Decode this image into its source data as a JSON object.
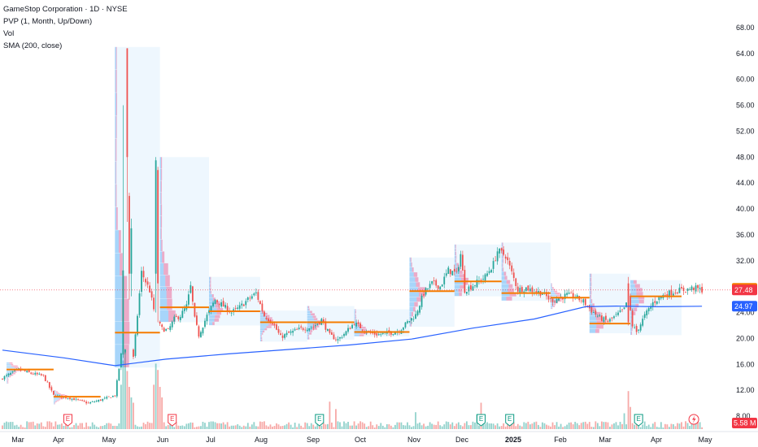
{
  "legend": {
    "title": "GameStop Corporation · 1D · NYSE",
    "indicator1": "PVP (1, Month, Up/Down)",
    "indicator2": "Vol",
    "indicator3": "SMA (200, close)"
  },
  "colors": {
    "up": "#26a69a",
    "down": "#ef5350",
    "sma": "#2962ff",
    "poc": "#f57c00",
    "profile_up": "#2196f3",
    "profile_down": "#e91e63",
    "box": "#e3f2fd"
  },
  "chart_data": {
    "type": "candlestick",
    "ylim": [
      7,
      71
    ],
    "yticks": [
      8,
      12,
      16,
      20,
      24,
      28,
      32,
      36,
      40,
      44,
      48,
      52,
      56,
      60,
      64,
      68
    ],
    "x_labels": [
      "Mar",
      "Apr",
      "May",
      "Jun",
      "Jul",
      "Aug",
      "Sep",
      "Oct",
      "Nov",
      "Dec",
      "2025",
      "Feb",
      "Mar",
      "Apr",
      "May"
    ],
    "price_badges": {
      "last": {
        "label": "27.48",
        "value": 27.48,
        "color": "#f23645"
      },
      "poc": {
        "label": "27.74",
        "value": 27.74,
        "color": "#f57c00"
      },
      "sma": {
        "label": "24.97",
        "value": 24.97,
        "color": "#2962ff"
      },
      "volume": {
        "label": "5.58 M",
        "color": "#f23645"
      }
    },
    "anchor_prices": [
      [
        0,
        13.9
      ],
      [
        8,
        15.2
      ],
      [
        14,
        14.6
      ],
      [
        20,
        14.2
      ],
      [
        25,
        11.2
      ],
      [
        33,
        10.8
      ],
      [
        42,
        10.0
      ],
      [
        48,
        10.5
      ],
      [
        52,
        10.9
      ],
      [
        55,
        11.2
      ],
      [
        58,
        17.5
      ],
      [
        62,
        19.5
      ],
      [
        64,
        17.0
      ],
      [
        68,
        30.2
      ],
      [
        72,
        27.4
      ],
      [
        75,
        23.0
      ],
      [
        78,
        21.5
      ],
      [
        81,
        21.2
      ],
      [
        84,
        23.0
      ],
      [
        87,
        23.5
      ],
      [
        90,
        25.0
      ],
      [
        92,
        28.0
      ],
      [
        94,
        23.0
      ],
      [
        96,
        20.5
      ],
      [
        100,
        23.5
      ],
      [
        104,
        26.0
      ],
      [
        108,
        25.0
      ],
      [
        112,
        24.0
      ],
      [
        116,
        24.8
      ],
      [
        120,
        26.0
      ],
      [
        124,
        27.0
      ],
      [
        128,
        23.5
      ],
      [
        132,
        22.5
      ],
      [
        136,
        20.2
      ],
      [
        140,
        20.8
      ],
      [
        146,
        21.5
      ],
      [
        152,
        21.8
      ],
      [
        156,
        22.9
      ],
      [
        160,
        20.5
      ],
      [
        164,
        19.8
      ],
      [
        168,
        21.0
      ],
      [
        172,
        22.4
      ],
      [
        176,
        21.5
      ],
      [
        180,
        20.8
      ],
      [
        184,
        20.6
      ],
      [
        190,
        20.9
      ],
      [
        194,
        21.2
      ],
      [
        198,
        22.5
      ],
      [
        202,
        23.6
      ],
      [
        206,
        27.0
      ],
      [
        210,
        28.5
      ],
      [
        214,
        28.0
      ],
      [
        218,
        30.5
      ],
      [
        222,
        30.0
      ],
      [
        224,
        33.0
      ],
      [
        226,
        27.5
      ],
      [
        230,
        28.2
      ],
      [
        236,
        29.5
      ],
      [
        240,
        31.5
      ],
      [
        242,
        33.5
      ],
      [
        246,
        32.8
      ],
      [
        248,
        31.0
      ],
      [
        252,
        27.5
      ],
      [
        256,
        27.8
      ],
      [
        260,
        27.3
      ],
      [
        264,
        27.0
      ],
      [
        268,
        25.9
      ],
      [
        272,
        26.2
      ],
      [
        276,
        26.7
      ],
      [
        280,
        26.4
      ],
      [
        284,
        25.7
      ],
      [
        288,
        24.3
      ],
      [
        292,
        23.2
      ],
      [
        296,
        22.6
      ],
      [
        300,
        23.5
      ],
      [
        304,
        24.5
      ],
      [
        306,
        26.5
      ],
      [
        308,
        22.0
      ],
      [
        310,
        21.0
      ],
      [
        314,
        23.5
      ],
      [
        318,
        25.5
      ],
      [
        322,
        26.5
      ],
      [
        326,
        27.0
      ],
      [
        330,
        27.4
      ],
      [
        334,
        27.5
      ],
      [
        338,
        27.8
      ],
      [
        342,
        27.48
      ]
    ],
    "spikes": [
      {
        "i": 59,
        "open": 17.5,
        "close": 30.5,
        "high": 56.0,
        "low": 17.0
      },
      {
        "i": 61,
        "open": 64.8,
        "close": 48.0,
        "high": 64.8,
        "low": 38.0
      },
      {
        "i": 62,
        "open": 42.0,
        "close": 30.0,
        "high": 42.5,
        "low": 26.0
      },
      {
        "i": 63,
        "open": 30.0,
        "close": 37.0,
        "high": 38.5,
        "low": 26.5
      },
      {
        "i": 75,
        "open": 30.0,
        "close": 47.5,
        "high": 48.0,
        "low": 24.0
      },
      {
        "i": 76,
        "open": 46.0,
        "close": 28.5,
        "high": 46.5,
        "low": 22.5
      },
      {
        "i": 306,
        "open": 28.5,
        "close": 22.5,
        "high": 29.5,
        "low": 22.0
      }
    ],
    "volume_peaks": [
      {
        "i": 58,
        "v": 4.2
      },
      {
        "i": 59,
        "v": 6.5
      },
      {
        "i": 60,
        "v": 7.5
      },
      {
        "i": 61,
        "v": 5.5
      },
      {
        "i": 62,
        "v": 4.0
      },
      {
        "i": 63,
        "v": 3.0
      },
      {
        "i": 64,
        "v": 2.5
      },
      {
        "i": 74,
        "v": 4.2
      },
      {
        "i": 75,
        "v": 6.2
      },
      {
        "i": 76,
        "v": 5.6
      },
      {
        "i": 77,
        "v": 4.0
      },
      {
        "i": 78,
        "v": 3.0
      },
      {
        "i": 160,
        "v": 2.6
      },
      {
        "i": 163,
        "v": 1.9
      },
      {
        "i": 202,
        "v": 1.6
      },
      {
        "i": 232,
        "v": 1.4
      },
      {
        "i": 234,
        "v": 2.5
      },
      {
        "i": 306,
        "v": 3.6
      },
      {
        "i": 307,
        "v": 2.1
      },
      {
        "i": 304,
        "v": 1.5
      }
    ],
    "sma_points": [
      [
        0,
        18.2
      ],
      [
        30,
        17.0
      ],
      [
        55,
        15.8
      ],
      [
        65,
        16.2
      ],
      [
        80,
        16.8
      ],
      [
        110,
        17.6
      ],
      [
        140,
        18.3
      ],
      [
        170,
        19.0
      ],
      [
        200,
        19.9
      ],
      [
        230,
        21.6
      ],
      [
        260,
        23.0
      ],
      [
        285,
        24.9
      ],
      [
        300,
        25.0
      ],
      [
        320,
        24.9
      ],
      [
        342,
        24.97
      ]
    ],
    "monthly_profiles": [
      {
        "start": 2,
        "end": 25,
        "low": 13.0,
        "high": 16.3,
        "poc": 15.2,
        "shaded": false
      },
      {
        "start": 25,
        "end": 48,
        "low": 9.8,
        "high": 12.0,
        "poc": 11.0,
        "shaded": false
      },
      {
        "start": 55,
        "end": 77,
        "low": 15.5,
        "high": 65.0,
        "poc": 20.9,
        "shaded": true
      },
      {
        "start": 77,
        "end": 101,
        "low": 22.5,
        "high": 48.0,
        "poc": 24.8,
        "shaded": true
      },
      {
        "start": 101,
        "end": 126,
        "low": 22.0,
        "high": 29.5,
        "poc": 24.2,
        "shaded": true
      },
      {
        "start": 126,
        "end": 149,
        "low": 19.5,
        "high": 24.3,
        "poc": 22.5,
        "shaded": true
      },
      {
        "start": 149,
        "end": 172,
        "low": 19.8,
        "high": 25.0,
        "poc": 22.5,
        "shaded": true
      },
      {
        "start": 172,
        "end": 199,
        "low": 20.3,
        "high": 24.5,
        "poc": 21.0,
        "shaded": true
      },
      {
        "start": 199,
        "end": 221,
        "low": 21.8,
        "high": 32.5,
        "poc": 27.3,
        "shaded": true
      },
      {
        "start": 221,
        "end": 244,
        "low": 26.5,
        "high": 34.5,
        "poc": 28.8,
        "shaded": true
      },
      {
        "start": 244,
        "end": 268,
        "low": 25.8,
        "high": 34.8,
        "poc": 27.0,
        "shaded": true
      },
      {
        "start": 268,
        "end": 287,
        "low": 24.5,
        "high": 28.5,
        "poc": 26.3,
        "shaded": false
      },
      {
        "start": 287,
        "end": 307,
        "low": 20.8,
        "high": 30.0,
        "poc": 22.3,
        "shaded": true
      },
      {
        "start": 307,
        "end": 332,
        "low": 20.5,
        "high": 29.0,
        "poc": 26.5,
        "shaded": true
      }
    ],
    "earnings_markers": [
      {
        "i": 32
      },
      {
        "i": 83
      }
    ],
    "dividend_markers": [
      {
        "i": 155
      },
      {
        "i": 234
      },
      {
        "i": 248
      },
      {
        "i": 311
      }
    ],
    "news_marker": {
      "i": 338
    }
  }
}
